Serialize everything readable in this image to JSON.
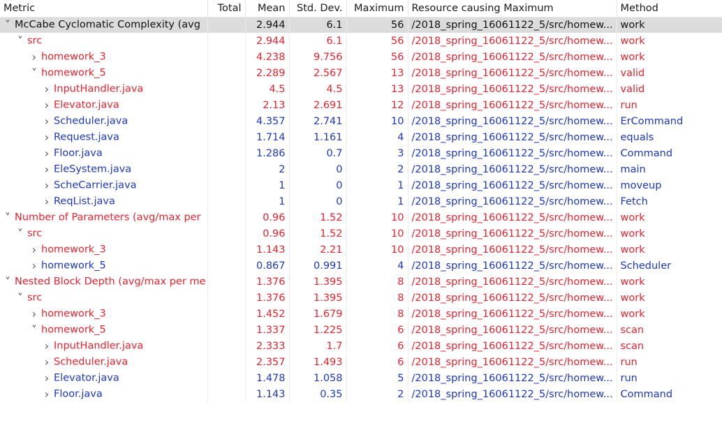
{
  "columns": {
    "metric": "Metric",
    "total": "Total",
    "mean": "Mean",
    "std": "Std. Dev.",
    "max": "Maximum",
    "resource": "Resource causing Maximum",
    "method": "Method"
  },
  "colors": {
    "red": "#e8232d",
    "blue": "#1b37c4",
    "selected_bg": "#dcdcdc"
  },
  "rows": [
    {
      "level": 0,
      "expanded": true,
      "selected": true,
      "color": "black",
      "metric": "McCabe Cyclomatic Complexity (avg",
      "total": "",
      "mean": "2.944",
      "std": "6.1",
      "max": "56",
      "resource": "/2018_spring_16061122_5/src/homew...",
      "method": "work"
    },
    {
      "level": 1,
      "expanded": true,
      "color": "red",
      "metric": "src",
      "total": "",
      "mean": "2.944",
      "std": "6.1",
      "max": "56",
      "resource": "/2018_spring_16061122_5/src/homew...",
      "method": "work"
    },
    {
      "level": 2,
      "expanded": false,
      "color": "red",
      "metric": "homework_3",
      "total": "",
      "mean": "4.238",
      "std": "9.756",
      "max": "56",
      "resource": "/2018_spring_16061122_5/src/homew...",
      "method": "work"
    },
    {
      "level": 2,
      "expanded": true,
      "color": "red",
      "metric": "homework_5",
      "total": "",
      "mean": "2.289",
      "std": "2.567",
      "max": "13",
      "resource": "/2018_spring_16061122_5/src/homew...",
      "method": "valid"
    },
    {
      "level": 3,
      "expanded": false,
      "color": "red",
      "metric": "InputHandler.java",
      "total": "",
      "mean": "4.5",
      "std": "4.5",
      "max": "13",
      "resource": "/2018_spring_16061122_5/src/homew...",
      "method": "valid"
    },
    {
      "level": 3,
      "expanded": false,
      "color": "red",
      "metric": "Elevator.java",
      "total": "",
      "mean": "2.13",
      "std": "2.691",
      "max": "12",
      "resource": "/2018_spring_16061122_5/src/homew...",
      "method": "run"
    },
    {
      "level": 3,
      "expanded": false,
      "color": "blue",
      "metric": "Scheduler.java",
      "total": "",
      "mean": "4.357",
      "std": "2.741",
      "max": "10",
      "resource": "/2018_spring_16061122_5/src/homew...",
      "method": "ErCommand"
    },
    {
      "level": 3,
      "expanded": false,
      "color": "blue",
      "metric": "Request.java",
      "total": "",
      "mean": "1.714",
      "std": "1.161",
      "max": "4",
      "resource": "/2018_spring_16061122_5/src/homew...",
      "method": "equals"
    },
    {
      "level": 3,
      "expanded": false,
      "color": "blue",
      "metric": "Floor.java",
      "total": "",
      "mean": "1.286",
      "std": "0.7",
      "max": "3",
      "resource": "/2018_spring_16061122_5/src/homew...",
      "method": "Command"
    },
    {
      "level": 3,
      "expanded": false,
      "color": "blue",
      "metric": "EleSystem.java",
      "total": "",
      "mean": "2",
      "std": "0",
      "max": "2",
      "resource": "/2018_spring_16061122_5/src/homew...",
      "method": "main"
    },
    {
      "level": 3,
      "expanded": false,
      "color": "blue",
      "metric": "ScheCarrier.java",
      "total": "",
      "mean": "1",
      "std": "0",
      "max": "1",
      "resource": "/2018_spring_16061122_5/src/homew...",
      "method": "moveup"
    },
    {
      "level": 3,
      "expanded": false,
      "color": "blue",
      "metric": "ReqList.java",
      "total": "",
      "mean": "1",
      "std": "0",
      "max": "1",
      "resource": "/2018_spring_16061122_5/src/homew...",
      "method": "Fetch"
    },
    {
      "level": 0,
      "expanded": true,
      "color": "red",
      "metric": "Number of Parameters (avg/max per",
      "total": "",
      "mean": "0.96",
      "std": "1.52",
      "max": "10",
      "resource": "/2018_spring_16061122_5/src/homew...",
      "method": "work"
    },
    {
      "level": 1,
      "expanded": true,
      "color": "red",
      "metric": "src",
      "total": "",
      "mean": "0.96",
      "std": "1.52",
      "max": "10",
      "resource": "/2018_spring_16061122_5/src/homew...",
      "method": "work"
    },
    {
      "level": 2,
      "expanded": false,
      "color": "red",
      "metric": "homework_3",
      "total": "",
      "mean": "1.143",
      "std": "2.21",
      "max": "10",
      "resource": "/2018_spring_16061122_5/src/homew...",
      "method": "work"
    },
    {
      "level": 2,
      "expanded": false,
      "color": "blue",
      "metric": "homework_5",
      "total": "",
      "mean": "0.867",
      "std": "0.991",
      "max": "4",
      "resource": "/2018_spring_16061122_5/src/homew...",
      "method": "Scheduler"
    },
    {
      "level": 0,
      "expanded": true,
      "color": "red",
      "metric": "Nested Block Depth (avg/max per me",
      "total": "",
      "mean": "1.376",
      "std": "1.395",
      "max": "8",
      "resource": "/2018_spring_16061122_5/src/homew...",
      "method": "work"
    },
    {
      "level": 1,
      "expanded": true,
      "color": "red",
      "metric": "src",
      "total": "",
      "mean": "1.376",
      "std": "1.395",
      "max": "8",
      "resource": "/2018_spring_16061122_5/src/homew...",
      "method": "work"
    },
    {
      "level": 2,
      "expanded": false,
      "color": "red",
      "metric": "homework_3",
      "total": "",
      "mean": "1.452",
      "std": "1.679",
      "max": "8",
      "resource": "/2018_spring_16061122_5/src/homew...",
      "method": "work"
    },
    {
      "level": 2,
      "expanded": true,
      "color": "red",
      "metric": "homework_5",
      "total": "",
      "mean": "1.337",
      "std": "1.225",
      "max": "6",
      "resource": "/2018_spring_16061122_5/src/homew...",
      "method": "scan"
    },
    {
      "level": 3,
      "expanded": false,
      "color": "red",
      "metric": "InputHandler.java",
      "total": "",
      "mean": "2.333",
      "std": "1.7",
      "max": "6",
      "resource": "/2018_spring_16061122_5/src/homew...",
      "method": "scan"
    },
    {
      "level": 3,
      "expanded": false,
      "color": "red",
      "metric": "Scheduler.java",
      "total": "",
      "mean": "2.357",
      "std": "1.493",
      "max": "6",
      "resource": "/2018_spring_16061122_5/src/homew...",
      "method": "run"
    },
    {
      "level": 3,
      "expanded": false,
      "color": "blue",
      "metric": "Elevator.java",
      "total": "",
      "mean": "1.478",
      "std": "1.058",
      "max": "5",
      "resource": "/2018_spring_16061122_5/src/homew...",
      "method": "run"
    },
    {
      "level": 3,
      "expanded": false,
      "color": "blue",
      "metric": "Floor.java",
      "total": "",
      "mean": "1.143",
      "std": "0.35",
      "max": "2",
      "resource": "/2018_spring_16061122_5/src/homew...",
      "method": "Command"
    }
  ]
}
